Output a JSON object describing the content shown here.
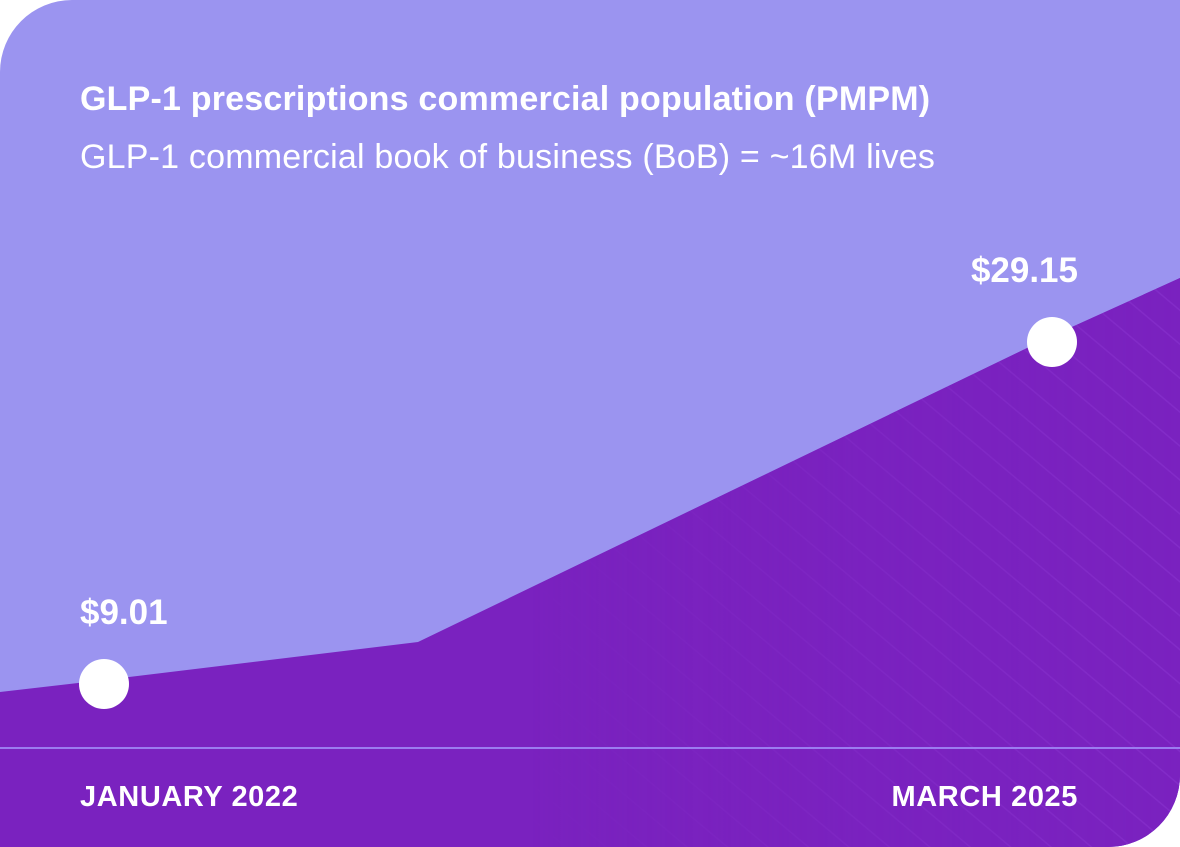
{
  "chart_data": {
    "type": "area",
    "title": "GLP-1 prescriptions commercial population (PMPM)",
    "subtitle": "GLP-1 commercial book of business (BoB) = ~16M lives",
    "x_tick_labels": [
      "JANUARY 2022",
      "MARCH 2025"
    ],
    "points": [
      {
        "x": "JANUARY 2022",
        "y": 9.01,
        "label": "$9.01"
      },
      {
        "x": "MARCH 2025",
        "y": 29.15,
        "label": "$29.15"
      }
    ],
    "xlabel": "",
    "ylabel": "",
    "grid": false,
    "legend": "none"
  },
  "colors": {
    "background": "#9b94f0",
    "area": "#7a22bf",
    "marker": "#ffffff",
    "text": "#ffffff",
    "baseline": "#9b7cf0"
  }
}
